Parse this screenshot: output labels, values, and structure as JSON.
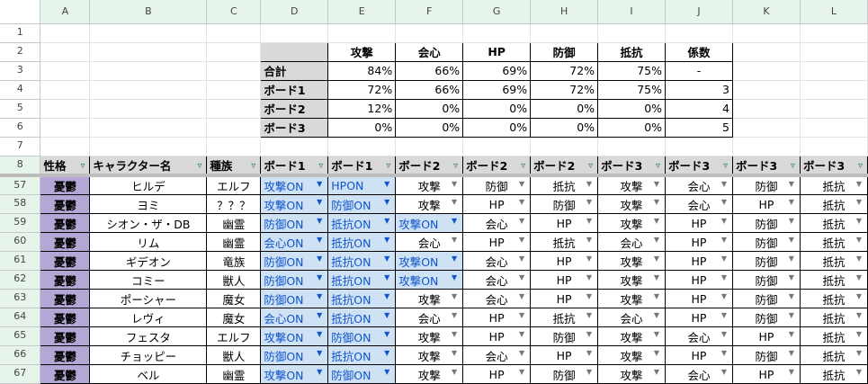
{
  "columns": [
    "A",
    "B",
    "C",
    "D",
    "E",
    "F",
    "G",
    "H",
    "I",
    "J",
    "K",
    "L"
  ],
  "summary": {
    "headers": [
      "攻撃",
      "会心",
      "HP",
      "防御",
      "抵抗",
      "係数"
    ],
    "rows": [
      {
        "label": "合計",
        "values": [
          "84%",
          "66%",
          "69%",
          "72%",
          "75%",
          "-"
        ]
      },
      {
        "label": "ボード1",
        "values": [
          "72%",
          "66%",
          "69%",
          "72%",
          "75%",
          "3"
        ]
      },
      {
        "label": "ボード2",
        "values": [
          "12%",
          "0%",
          "0%",
          "0%",
          "0%",
          "4"
        ]
      },
      {
        "label": "ボード3",
        "values": [
          "0%",
          "0%",
          "0%",
          "0%",
          "0%",
          "5"
        ]
      }
    ]
  },
  "table_headers": [
    "性格",
    "キャラクター名",
    "種族",
    "ボード1",
    "ボード1",
    "ボード2",
    "ボード2",
    "ボード2",
    "ボード3",
    "ボード3",
    "ボード3",
    "ボード3"
  ],
  "filter_icon": "filter-icon",
  "colors": {
    "personality": "#b4a7d6",
    "on_cell": "#cfe2f3",
    "on_text": "#1155cc",
    "header_bg": "#d9d9d9",
    "selected_header": "#e6f4ea"
  },
  "rows": [
    {
      "num": "57",
      "cells": [
        "憂鬱",
        "ヒルデ",
        "エルフ",
        "攻撃ON",
        "HPON",
        "攻撃",
        "防御",
        "抵抗",
        "攻撃",
        "会心",
        "防御",
        "抵抗"
      ]
    },
    {
      "num": "58",
      "cells": [
        "憂鬱",
        "ヨミ",
        "？？？",
        "攻撃ON",
        "防御ON",
        "攻撃",
        "HP",
        "防御",
        "攻撃",
        "会心",
        "HP",
        "抵抗"
      ]
    },
    {
      "num": "59",
      "cells": [
        "憂鬱",
        "シオン・ザ・DB",
        "幽霊",
        "防御ON",
        "抵抗ON",
        "攻撃ON",
        "会心",
        "HP",
        "攻撃",
        "HP",
        "防御",
        "抵抗"
      ]
    },
    {
      "num": "60",
      "cells": [
        "憂鬱",
        "リム",
        "幽霊",
        "会心ON",
        "抵抗ON",
        "会心",
        "HP",
        "抵抗",
        "会心",
        "HP",
        "防御",
        "抵抗"
      ]
    },
    {
      "num": "61",
      "cells": [
        "憂鬱",
        "ギデオン",
        "竜族",
        "防御ON",
        "抵抗ON",
        "攻撃ON",
        "会心",
        "HP",
        "攻撃",
        "HP",
        "防御",
        "抵抗"
      ]
    },
    {
      "num": "62",
      "cells": [
        "憂鬱",
        "コミー",
        "獣人",
        "防御ON",
        "抵抗ON",
        "攻撃ON",
        "会心",
        "HP",
        "攻撃",
        "HP",
        "防御",
        "抵抗"
      ]
    },
    {
      "num": "63",
      "cells": [
        "憂鬱",
        "ポーシャー",
        "魔女",
        "防御ON",
        "抵抗ON",
        "攻撃",
        "会心",
        "HP",
        "攻撃",
        "HP",
        "防御",
        "抵抗"
      ]
    },
    {
      "num": "64",
      "cells": [
        "憂鬱",
        "レヴィ",
        "魔女",
        "会心ON",
        "抵抗ON",
        "会心",
        "HP",
        "抵抗",
        "会心",
        "HP",
        "防御",
        "抵抗"
      ]
    },
    {
      "num": "65",
      "cells": [
        "憂鬱",
        "フェスタ",
        "エルフ",
        "攻撃ON",
        "防御ON",
        "攻撃",
        "HP",
        "防御",
        "攻撃",
        "会心",
        "HP",
        "抵抗"
      ]
    },
    {
      "num": "66",
      "cells": [
        "憂鬱",
        "チョッピー",
        "獣人",
        "防御ON",
        "抵抗ON",
        "攻撃",
        "会心",
        "HP",
        "攻撃",
        "HP",
        "防御",
        "抵抗"
      ]
    },
    {
      "num": "67",
      "cells": [
        "憂鬱",
        "ベル",
        "幽霊",
        "攻撃ON",
        "防御ON",
        "攻撃",
        "HP",
        "防御",
        "攻撃",
        "会心",
        "HP",
        "抵抗"
      ]
    }
  ],
  "row_numbers_top": [
    "1",
    "2",
    "3",
    "4",
    "5",
    "6",
    "7",
    "8"
  ]
}
